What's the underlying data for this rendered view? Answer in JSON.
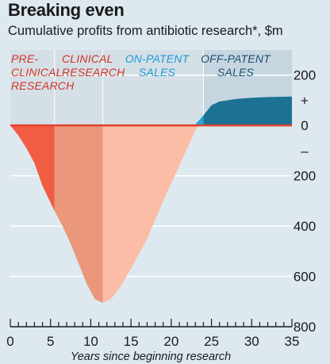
{
  "title": "Breaking even",
  "subtitle": "Cumulative profits from antibiotic research*, $m",
  "chart_data": {
    "type": "area",
    "xlabel": "Years since beginning research",
    "ylabel": "",
    "xlim": [
      0,
      35
    ],
    "ylim": [
      -800,
      300
    ],
    "x_ticks": [
      0,
      5,
      10,
      15,
      20,
      25,
      30,
      35
    ],
    "y_tick_labels": [
      {
        "value": 200,
        "label": "200"
      },
      {
        "value": 100,
        "label": "+"
      },
      {
        "value": 0,
        "label": "0"
      },
      {
        "value": -100,
        "label": "–"
      },
      {
        "value": -200,
        "label": "200"
      },
      {
        "value": -400,
        "label": "400"
      },
      {
        "value": -600,
        "label": "600"
      },
      {
        "value": -800,
        "label": "800"
      }
    ],
    "grid": true,
    "phases": [
      {
        "name": "PRE-CLINICAL RESEARCH",
        "lines": [
          "PRE-",
          "CLINICAL",
          "RESEARCH"
        ],
        "start": 0,
        "end": 5.5,
        "label_color": "#d33324",
        "fill": "#f15d42"
      },
      {
        "name": "CLINICAL RESEARCH",
        "lines": [
          "CLINICAL",
          "RESEARCH"
        ],
        "start": 5.5,
        "end": 11.5,
        "label_color": "#d33324",
        "fill": "#ea977b"
      },
      {
        "name": "ON-PATENT SALES",
        "lines": [
          "ON-PATENT",
          "SALES"
        ],
        "start": 11.5,
        "end": 24,
        "label_color": "#1c9ad6",
        "fill": "#fbbda5"
      },
      {
        "name": "OFF-PATENT SALES",
        "lines": [
          "OFF-PATENT",
          "SALES"
        ],
        "start": 24,
        "end": 35,
        "label_color": "#1b4f6e",
        "fill": "#1b7293"
      }
    ],
    "series": [
      {
        "x": [
          0,
          1,
          2,
          3,
          4,
          5.5,
          6.5,
          7.5,
          8.5,
          9.5,
          10.5,
          11.5,
          12.5,
          13.5,
          15,
          17,
          19,
          21,
          23,
          24,
          25,
          26,
          28,
          30,
          32,
          35
        ],
        "values": [
          0,
          -40,
          -90,
          -150,
          -240,
          -340,
          -400,
          -470,
          -550,
          -630,
          -690,
          -705,
          -690,
          -650,
          -570,
          -450,
          -300,
          -160,
          -20,
          40,
          80,
          95,
          105,
          110,
          113,
          115
        ]
      }
    ]
  }
}
